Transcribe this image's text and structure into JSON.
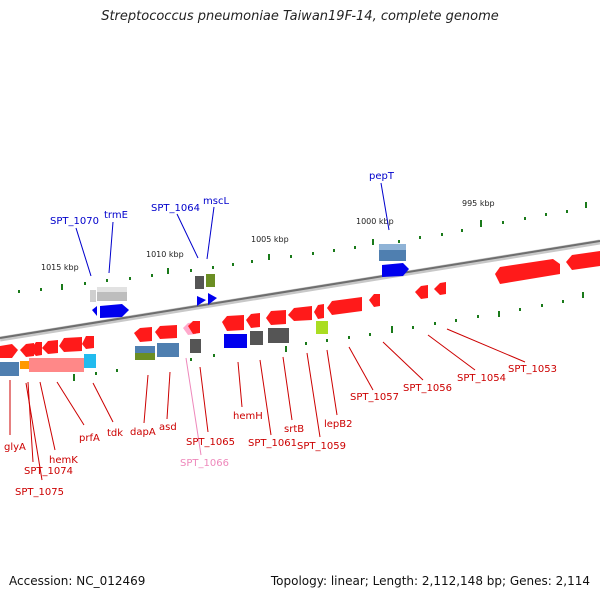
{
  "title": "Streptococcus pneumoniae Taiwan19F-14, complete genome",
  "accession_text": "Accession: NC_012469",
  "summary_text": "Topology: linear; Length: 2,112,148 bp; Genes: 2,114",
  "scale_labels": [
    "1015 kbp",
    "1010 kbp",
    "1005 kbp",
    "1000 kbp",
    "995 kbp"
  ],
  "gene_labels_top": [
    "SPT_1070",
    "trmE",
    "SPT_1064",
    "mscL",
    "pepT"
  ],
  "gene_labels_bottom": [
    "glyA",
    "SPT_1074",
    "SPT_1075",
    "hemK",
    "prfA",
    "tdk",
    "dapA",
    "asd",
    "SPT_1065",
    "SPT_1066",
    "hemH",
    "SPT_1061",
    "srtB",
    "SPT_1059",
    "lepB2",
    "SPT_1057",
    "SPT_1056",
    "SPT_1054",
    "SPT_1053"
  ],
  "colors": {
    "backbone": "#8a8a8a",
    "gene_red": "#ff1a1a",
    "label_red": "#cc0000",
    "label_blue": "#0000cc",
    "label_pink": "#ee88bb",
    "tick_green": "#1a7a1a",
    "cds_blue": "#0000ee",
    "steel": "#4f7fb0",
    "gray": "#666666",
    "olive": "#6b8e23",
    "lime": "#aadd22",
    "cyan": "#22bbee",
    "salmon": "#ff8888",
    "orange": "#ff9900"
  }
}
